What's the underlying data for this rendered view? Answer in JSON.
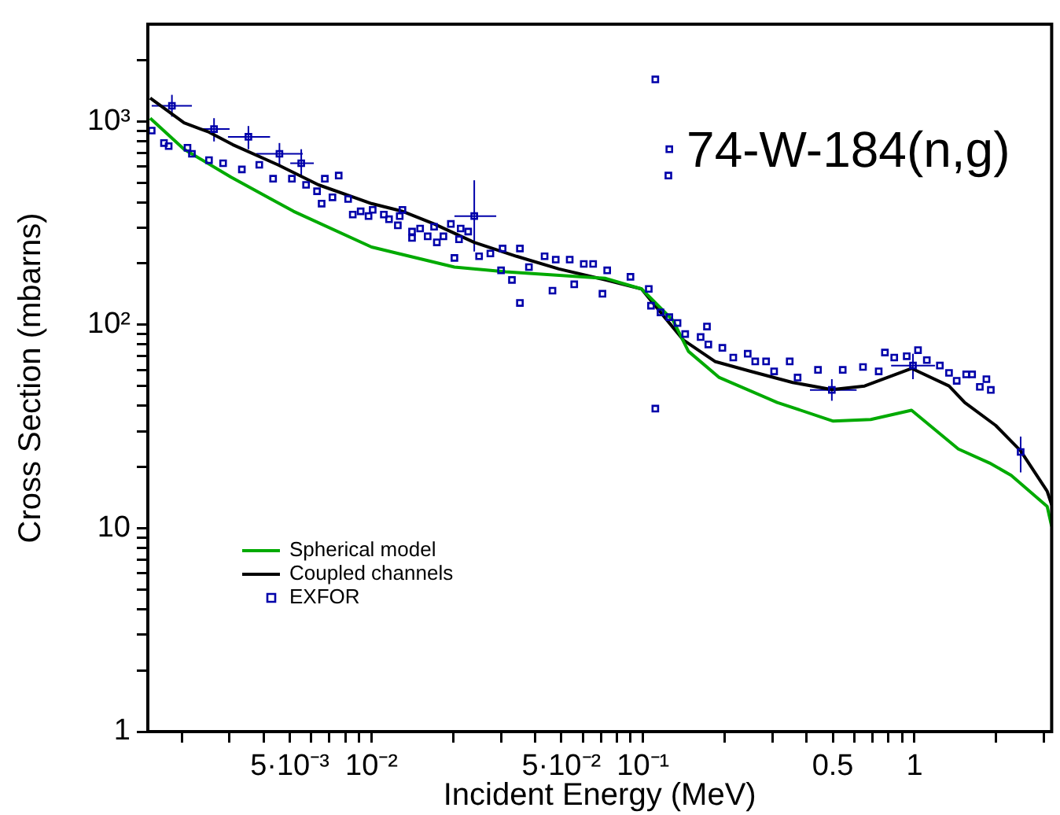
{
  "chart_data": {
    "type": "line",
    "title": "74-W-184(n,g)",
    "xlabel": "Incident Energy (MeV)",
    "ylabel": "Cross Section (mbarns)",
    "log": "xy",
    "legend": "bottom left",
    "xlim": [
      0.0015,
      3.2
    ],
    "ylim": [
      1,
      3000
    ],
    "xticks": [
      {
        "value": 0.002,
        "label": null
      },
      {
        "value": 0.003,
        "label": null
      },
      {
        "value": 0.004,
        "label": null
      },
      {
        "value": 0.005,
        "label": "5·10⁻³"
      },
      {
        "value": 0.006,
        "label": null
      },
      {
        "value": 0.007,
        "label": null
      },
      {
        "value": 0.008,
        "label": null
      },
      {
        "value": 0.009,
        "label": null
      },
      {
        "value": 0.01,
        "label": "10⁻²"
      },
      {
        "value": 0.02,
        "label": null
      },
      {
        "value": 0.03,
        "label": null
      },
      {
        "value": 0.04,
        "label": null
      },
      {
        "value": 0.05,
        "label": "5·10⁻²"
      },
      {
        "value": 0.06,
        "label": null
      },
      {
        "value": 0.07,
        "label": null
      },
      {
        "value": 0.08,
        "label": null
      },
      {
        "value": 0.09,
        "label": null
      },
      {
        "value": 0.1,
        "label": "10⁻¹"
      },
      {
        "value": 0.2,
        "label": null
      },
      {
        "value": 0.3,
        "label": null
      },
      {
        "value": 0.4,
        "label": null
      },
      0.5,
      {
        "value": 0.6,
        "label": null
      },
      {
        "value": 0.7,
        "label": null
      },
      {
        "value": 0.8,
        "label": null
      },
      {
        "value": 0.9,
        "label": null
      },
      1,
      {
        "value": 2,
        "label": null
      },
      {
        "value": 3,
        "label": null
      }
    ],
    "yticks": [
      1,
      {
        "value": 2,
        "label": null
      },
      {
        "value": 3,
        "label": null
      },
      {
        "value": 4,
        "label": null
      },
      {
        "value": 5,
        "label": null
      },
      {
        "value": 6,
        "label": null
      },
      {
        "value": 7,
        "label": null
      },
      {
        "value": 8,
        "label": null
      },
      {
        "value": 9,
        "label": null
      },
      10,
      {
        "value": 20,
        "label": null
      },
      {
        "value": 30,
        "label": null
      },
      {
        "value": 40,
        "label": null
      },
      {
        "value": 50,
        "label": null
      },
      {
        "value": 60,
        "label": null
      },
      {
        "value": 70,
        "label": null
      },
      {
        "value": 80,
        "label": null
      },
      {
        "value": 90,
        "label": null
      },
      {
        "value": 100,
        "label": "10²"
      },
      {
        "value": 200,
        "label": null
      },
      {
        "value": 300,
        "label": null
      },
      {
        "value": 400,
        "label": null
      },
      {
        "value": 500,
        "label": null
      },
      {
        "value": 600,
        "label": null
      },
      {
        "value": 700,
        "label": null
      },
      {
        "value": 800,
        "label": null
      },
      {
        "value": 900,
        "label": null
      },
      {
        "value": 1000,
        "label": "10³"
      },
      {
        "value": 2000,
        "label": null
      }
    ],
    "series": [
      {
        "name": "Spherical model",
        "color": "#00aa00",
        "x": [
          0.00153,
          0.00204,
          0.00304,
          0.00516,
          0.01,
          0.0202,
          0.0312,
          0.0728,
          0.0987,
          0.129,
          0.147,
          0.191,
          0.312,
          0.502,
          0.69,
          0.975,
          1.45,
          1.89,
          2.27,
          3.08,
          3.2
        ],
        "values": [
          1036,
          729,
          531,
          361,
          241,
          192,
          182,
          169,
          150,
          105,
          74,
          55,
          41.5,
          33.6,
          34.2,
          38,
          24.5,
          20.9,
          18.2,
          12.8,
          10.2
        ]
      },
      {
        "name": "Coupled channels",
        "color": "#000000",
        "x": [
          0.00153,
          0.00204,
          0.00252,
          0.00308,
          0.00452,
          0.00638,
          0.01,
          0.013,
          0.017,
          0.0239,
          0.0342,
          0.049,
          0.0728,
          0.0987,
          0.12,
          0.141,
          0.184,
          0.249,
          0.356,
          0.496,
          0.655,
          0.975,
          1.34,
          1.53,
          1.99,
          2.46,
          3.08,
          3.2
        ],
        "values": [
          1300,
          983,
          885,
          768,
          611,
          487,
          394,
          361,
          313,
          254,
          217,
          188,
          166,
          150,
          109,
          84,
          66,
          59,
          52,
          48,
          50,
          61,
          50,
          41.5,
          32,
          24,
          15.2,
          13
        ]
      },
      {
        "name": "EXFOR",
        "type": "scatter",
        "marker": "square",
        "color": "#0000aa",
        "x": [
          0.00184,
          0.00155,
          0.00172,
          0.00179,
          0.0021,
          0.00218,
          0.00263,
          0.00252,
          0.00284,
          0.00352,
          0.00333,
          0.00386,
          0.00458,
          0.00434,
          0.00509,
          0.00551,
          0.00574,
          0.0063,
          0.00673,
          0.00655,
          0.00757,
          0.00718,
          0.0082,
          0.00853,
          0.00912,
          0.00975,
          0.0101,
          0.0111,
          0.0116,
          0.0125,
          0.0127,
          0.013,
          0.0141,
          0.0141,
          0.0151,
          0.0161,
          0.017,
          0.0174,
          0.0184,
          0.0196,
          0.0202,
          0.021,
          0.0213,
          0.0227,
          0.0239,
          0.0249,
          0.0274,
          0.03,
          0.0304,
          0.0329,
          0.0352,
          0.0352,
          0.038,
          0.0434,
          0.0464,
          0.0477,
          0.0537,
          0.0558,
          0.0605,
          0.0655,
          0.0709,
          0.0738,
          0.0899,
          0.105,
          0.111,
          0.125,
          0.124,
          0.107,
          0.111,
          0.116,
          0.125,
          0.134,
          0.143,
          0.172,
          0.163,
          0.174,
          0.196,
          0.215,
          0.243,
          0.259,
          0.284,
          0.304,
          0.347,
          0.371,
          0.441,
          0.496,
          0.544,
          0.646,
          0.738,
          0.778,
          0.842,
          0.936,
          1.03,
          0.987,
          1.11,
          1.24,
          1.34,
          1.43,
          1.55,
          1.63,
          1.74,
          1.84,
          1.91,
          2.46
        ],
        "values": [
          1192,
          900,
          782,
          755,
          741,
          692,
          916,
          644,
          622,
          839,
          580,
          611,
          692,
          522,
          522,
          622,
          487,
          453,
          522,
          394,
          541,
          423,
          415,
          348,
          361,
          342,
          367,
          348,
          330,
          308,
          342,
          367,
          287,
          267,
          297,
          272,
          303,
          254,
          272,
          313,
          213,
          263,
          297,
          287,
          342,
          217,
          224,
          185,
          237,
          166,
          237,
          128,
          192,
          217,
          147,
          209,
          209,
          158,
          199,
          199,
          142,
          185,
          172,
          150,
          1607,
          729,
          541,
          124,
          38.7,
          115,
          109,
          102,
          90,
          98,
          87,
          80,
          77,
          69,
          72,
          66,
          66,
          59,
          66,
          55,
          60,
          47.8,
          60,
          62,
          59,
          73,
          69,
          70,
          75,
          63,
          67,
          63,
          58,
          53,
          57,
          57,
          49.5,
          54,
          47.8,
          23.7
        ],
        "errors": [
          [
            1054,
            1349
          ],
          null,
          null,
          null,
          null,
          null,
          [
            796,
            1036
          ],
          null,
          null,
          [
            729,
            948
          ],
          null,
          null,
          [
            611,
            782
          ],
          null,
          null,
          [
            531,
            729
          ],
          null,
          null,
          null,
          null,
          null,
          null,
          null,
          null,
          null,
          null,
          null,
          null,
          null,
          null,
          null,
          null,
          null,
          null,
          null,
          null,
          null,
          null,
          null,
          null,
          null,
          null,
          null,
          null,
          [
            229,
            513
          ],
          null,
          null,
          null,
          null,
          null,
          null,
          null,
          null,
          null,
          null,
          null,
          null,
          null,
          null,
          null,
          null,
          null,
          null,
          null,
          null,
          null,
          null,
          null,
          null,
          null,
          null,
          null,
          null,
          null,
          null,
          null,
          null,
          null,
          null,
          null,
          null,
          null,
          null,
          null,
          null,
          [
            42.3,
            54
          ],
          null,
          null,
          null,
          null,
          null,
          null,
          null,
          [
            54,
            72
          ],
          null,
          null,
          null,
          null,
          null,
          null,
          null,
          null,
          null,
          [
            18.8,
            28.2
          ]
        ],
        "xerrors": [
          [
            0.00155,
            0.00218
          ],
          null,
          null,
          null,
          null,
          null,
          [
            0.0023,
            0.003
          ],
          null,
          null,
          [
            0.00296,
            0.00423
          ],
          null,
          null,
          [
            0.00376,
            0.00558
          ],
          null,
          null,
          [
            0.00502,
            0.00613
          ],
          null,
          null,
          null,
          null,
          null,
          null,
          null,
          null,
          null,
          null,
          null,
          null,
          null,
          null,
          null,
          null,
          null,
          null,
          null,
          null,
          null,
          null,
          null,
          null,
          null,
          null,
          null,
          null,
          [
            0.0202,
            0.0288
          ],
          null,
          null,
          null,
          null,
          null,
          null,
          null,
          null,
          null,
          null,
          null,
          null,
          null,
          null,
          null,
          null,
          null,
          null,
          null,
          null,
          null,
          null,
          null,
          null,
          null,
          null,
          null,
          null,
          null,
          null,
          null,
          null,
          null,
          null,
          null,
          null,
          null,
          null,
          null,
          null,
          [
            0.412,
            0.612
          ],
          null,
          null,
          null,
          null,
          null,
          null,
          null,
          [
            0.82,
            1.19
          ],
          null,
          null,
          null,
          null,
          null,
          null,
          null,
          null,
          null,
          null
        ]
      }
    ]
  }
}
